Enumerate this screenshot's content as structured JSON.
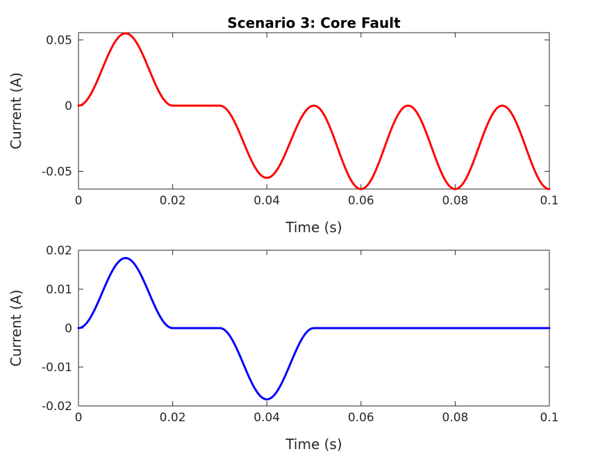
{
  "chart_data": [
    {
      "type": "line",
      "title": "Scenario 3: Core Fault",
      "xlabel": "Time (s)",
      "ylabel": "Current (A)",
      "xlim": [
        0,
        0.1
      ],
      "ylim": [
        -0.0635,
        0.0555
      ],
      "xticks": [
        0,
        0.02,
        0.04,
        0.06,
        0.08,
        0.1
      ],
      "xtick_labels": [
        "0",
        "0.02",
        "0.04",
        "0.06",
        "0.08",
        "0.1"
      ],
      "yticks": [
        -0.05,
        0,
        0.05
      ],
      "ytick_labels": [
        "-0.05",
        "0",
        "0.05"
      ],
      "grid": false,
      "series": [
        {
          "color": "#ff0000",
          "x": [
            0,
            0.01,
            0.02,
            0.03,
            0.04,
            0.05,
            0.06,
            0.07,
            0.08,
            0.09,
            0.1
          ],
          "y": [
            0,
            0.055,
            0,
            0,
            -0.055,
            0,
            -0.0635,
            0,
            -0.0635,
            0,
            -0.0635
          ]
        }
      ]
    },
    {
      "type": "line",
      "title": "",
      "xlabel": "Time (s)",
      "ylabel": "Current (A)",
      "xlim": [
        0,
        0.1
      ],
      "ylim": [
        -0.02,
        0.02
      ],
      "xticks": [
        0,
        0.02,
        0.04,
        0.06,
        0.08,
        0.1
      ],
      "xtick_labels": [
        "0",
        "0.02",
        "0.04",
        "0.06",
        "0.08",
        "0.1"
      ],
      "yticks": [
        -0.02,
        -0.01,
        0,
        0.01,
        0.02
      ],
      "ytick_labels": [
        "-0.02",
        "-0.01",
        "0",
        "0.01",
        "0.02"
      ],
      "grid": false,
      "series": [
        {
          "color": "#0000ff",
          "x": [
            0,
            0.01,
            0.02,
            0.03,
            0.04,
            0.05,
            0.1
          ],
          "y": [
            0,
            0.018,
            0,
            0,
            -0.0183,
            0,
            0
          ]
        }
      ]
    }
  ]
}
